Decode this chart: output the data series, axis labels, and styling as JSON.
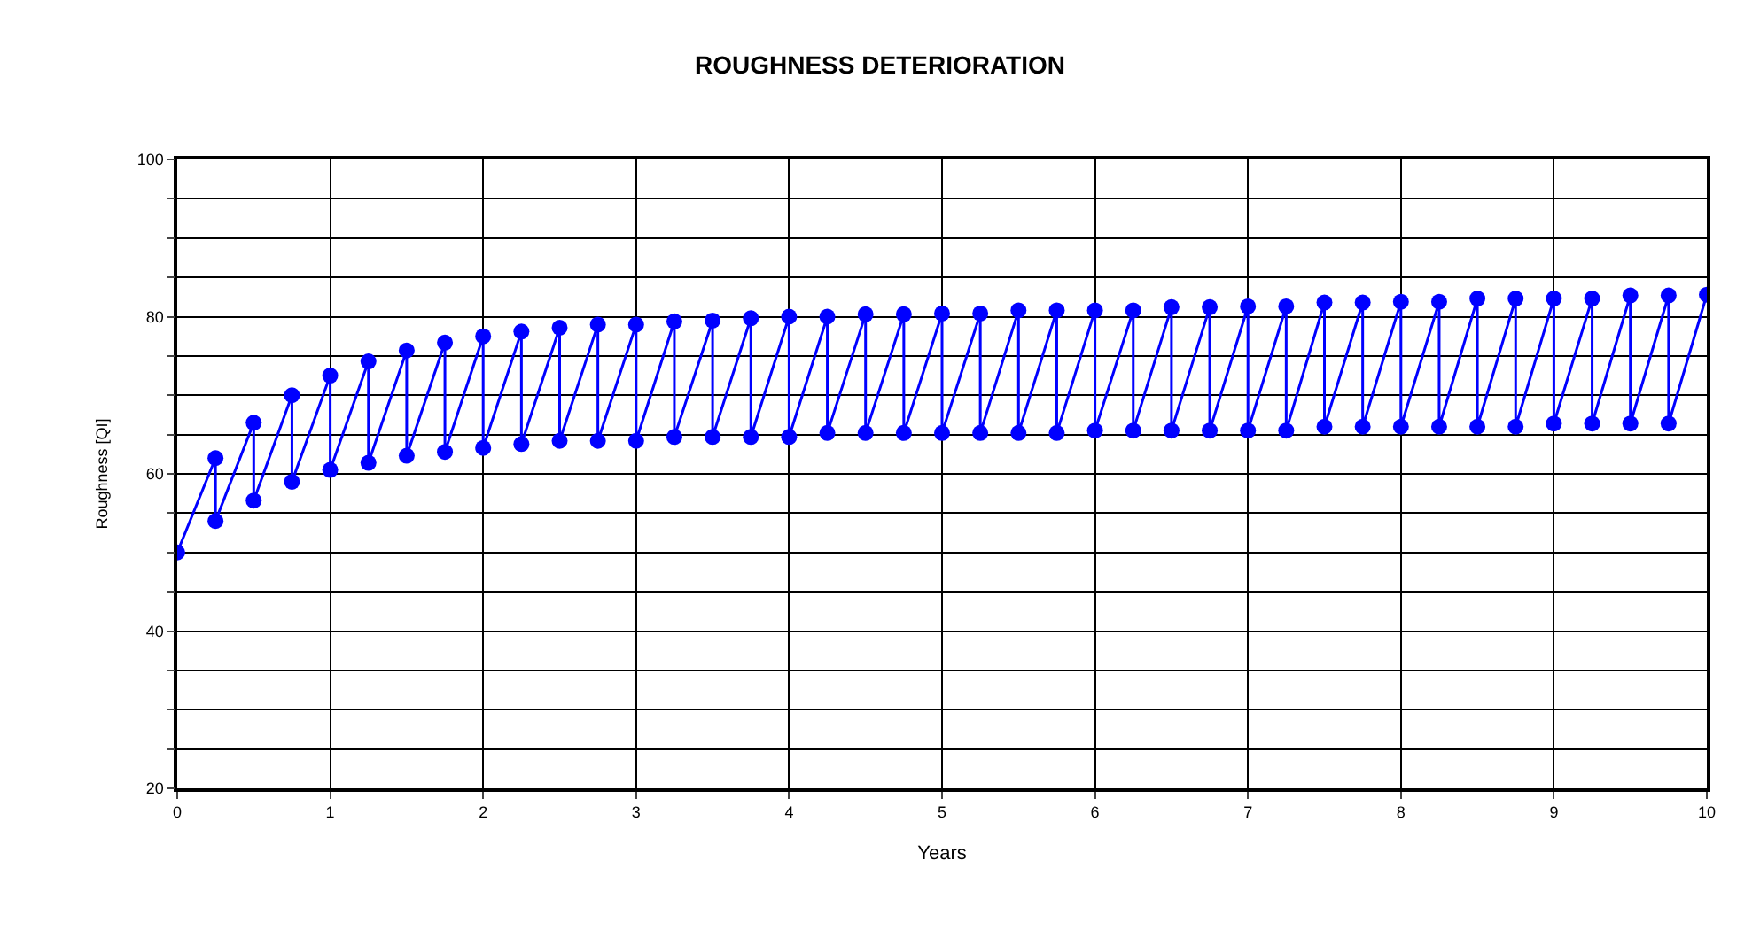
{
  "chart_data": {
    "type": "line",
    "title": "ROUGHNESS DETERIORATION",
    "xlabel": "Years",
    "ylabel": "Roughness [QI]",
    "x": [
      0,
      0.25,
      0.25,
      0.5,
      0.5,
      0.75,
      0.75,
      1,
      1,
      1.25,
      1.25,
      1.5,
      1.5,
      1.75,
      1.75,
      2,
      2,
      2.25,
      2.25,
      2.5,
      2.5,
      2.75,
      2.75,
      3,
      3,
      3.25,
      3.25,
      3.5,
      3.5,
      3.75,
      3.75,
      4,
      4,
      4.25,
      4.25,
      4.5,
      4.5,
      4.75,
      4.75,
      5,
      5,
      5.25,
      5.25,
      5.5,
      5.5,
      5.75,
      5.75,
      6,
      6,
      6.25,
      6.25,
      6.5,
      6.5,
      6.75,
      6.75,
      7,
      7,
      7.25,
      7.25,
      7.5,
      7.5,
      7.75,
      7.75,
      8,
      8,
      8.25,
      8.25,
      8.5,
      8.5,
      8.75,
      8.75,
      9,
      9,
      9.25,
      9.25,
      9.5,
      9.5,
      9.75,
      9.75,
      10
    ],
    "series": [
      {
        "color": "#0000ff",
        "values": [
          50,
          62,
          54,
          66.5,
          56.6,
          70,
          59,
          72.5,
          60.5,
          74.3,
          61.4,
          75.7,
          62.3,
          76.7,
          62.8,
          77.5,
          63.3,
          78.1,
          63.8,
          78.6,
          64.2,
          79,
          64.2,
          79,
          64.2,
          79.4,
          64.7,
          79.5,
          64.7,
          79.8,
          64.7,
          80,
          64.7,
          80,
          65.2,
          80.3,
          65.2,
          80.3,
          65.2,
          80.4,
          65.2,
          80.4,
          65.2,
          80.8,
          65.2,
          80.8,
          65.2,
          80.8,
          65.5,
          80.8,
          65.5,
          81.2,
          65.5,
          81.2,
          65.5,
          81.3,
          65.5,
          81.3,
          65.5,
          81.8,
          66,
          81.8,
          66,
          81.9,
          66,
          81.9,
          66,
          82.3,
          66,
          82.3,
          66,
          82.3,
          66.4,
          82.3,
          66.4,
          82.7,
          66.4,
          82.7,
          66.4,
          82.8
        ]
      }
    ],
    "xlim": [
      0,
      10
    ],
    "xticks": [
      0,
      1,
      2,
      3,
      4,
      5,
      6,
      7,
      8,
      9,
      10
    ],
    "ylim": [
      20,
      100
    ],
    "yticks": [
      20,
      {
        "value": 25,
        "label": null
      },
      {
        "value": 30,
        "label": null
      },
      {
        "value": 35,
        "label": null
      },
      40,
      {
        "value": 45,
        "label": null
      },
      {
        "value": 50,
        "label": null
      },
      {
        "value": 55,
        "label": null
      },
      60,
      {
        "value": 65,
        "label": null
      },
      {
        "value": 70,
        "label": null
      },
      {
        "value": 75,
        "label": null
      },
      80,
      {
        "value": 85,
        "label": null
      },
      {
        "value": 90,
        "label": null
      },
      {
        "value": 95,
        "label": null
      },
      100
    ],
    "grid": true,
    "marker": "circle",
    "line_style": "solid"
  }
}
